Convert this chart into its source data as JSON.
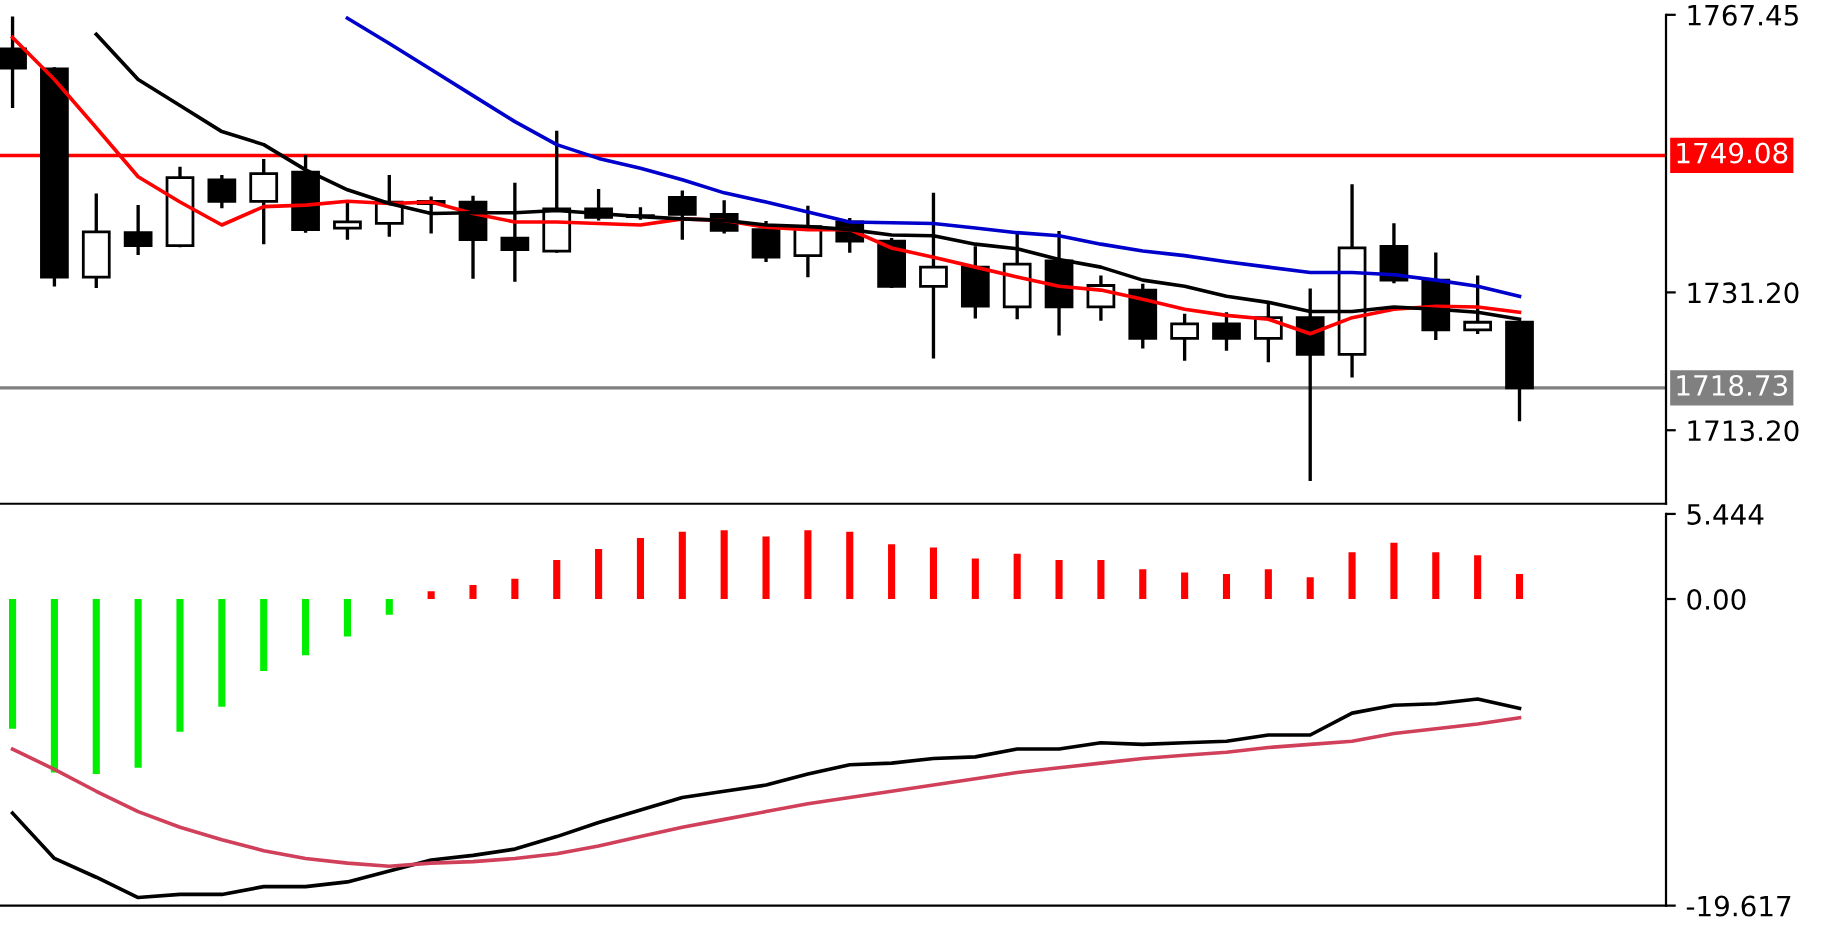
{
  "chart_data": [
    {
      "type": "candlestick",
      "categories": [
        null,
        null,
        null,
        null,
        null,
        null,
        null,
        null,
        null,
        null,
        null,
        null,
        null,
        null,
        null,
        null,
        null,
        null,
        null,
        null,
        null,
        null,
        null,
        null,
        null,
        null,
        null,
        null,
        null,
        null,
        null,
        null,
        null,
        null,
        null,
        null,
        null
      ],
      "ohlc": [
        [
          1763,
          1767,
          1755.5,
          1760.5
        ],
        [
          1760.4,
          1760.4,
          1732.2,
          1733.2
        ],
        [
          1733.2,
          1743.9,
          1732,
          1739.1
        ],
        [
          1739,
          1742.4,
          1736.3,
          1737.3
        ],
        [
          1737.3,
          1747.4,
          1737.3,
          1746.2
        ],
        [
          1745.9,
          1746.3,
          1742.4,
          1743.1
        ],
        [
          1743.1,
          1748.4,
          1737.7,
          1746.7
        ],
        [
          1746.9,
          1748.9,
          1739.2,
          1739.4
        ],
        [
          1739.6,
          1742.7,
          1738.3,
          1740.4
        ],
        [
          1740.2,
          1746.3,
          1738.7,
          1743
        ],
        [
          1743.1,
          1743.5,
          1739.1,
          1742.8
        ],
        [
          1743,
          1743.6,
          1733.2,
          1738.1
        ],
        [
          1738.3,
          1745.3,
          1732.8,
          1736.8
        ],
        [
          1736.6,
          1752.1,
          1736.6,
          1742.1
        ],
        [
          1742.1,
          1744.5,
          1740.8,
          1741
        ],
        [
          1741.2,
          1742.1,
          1740.9,
          1741.1
        ],
        [
          1743.6,
          1744.3,
          1738.3,
          1741.4
        ],
        [
          1741.4,
          1743,
          1739.1,
          1739.3
        ],
        [
          1739.4,
          1740.3,
          1735.4,
          1735.8
        ],
        [
          1736,
          1742.3,
          1733.4,
          1739.8
        ],
        [
          1740.4,
          1740.7,
          1736.6,
          1737.9
        ],
        [
          1737.9,
          1738.1,
          1732,
          1732
        ],
        [
          1732,
          1744,
          1722.8,
          1734.5
        ],
        [
          1734.5,
          1737,
          1728,
          1729.4
        ],
        [
          1729.3,
          1738.7,
          1727.9,
          1734.9
        ],
        [
          1735.3,
          1739,
          1725.8,
          1729.3
        ],
        [
          1729.3,
          1733.2,
          1727.7,
          1732.1
        ],
        [
          1731.5,
          1732.1,
          1724.1,
          1725.2
        ],
        [
          1725.2,
          1728.2,
          1722.5,
          1727.1
        ],
        [
          1727.1,
          1728.4,
          1723.8,
          1725.2
        ],
        [
          1725.2,
          1729.6,
          1722.3,
          1727.9
        ],
        [
          1727.9,
          1731.5,
          1706.8,
          1723.1
        ],
        [
          1723.1,
          1745.1,
          1720.3,
          1737
        ],
        [
          1737.2,
          1740,
          1732.6,
          1732.8
        ],
        [
          1732.8,
          1736.2,
          1725.2,
          1726.3
        ],
        [
          1726.3,
          1733.2,
          1726,
          1727.3
        ],
        [
          1727.3,
          1727.3,
          1714.6,
          1718.73
        ]
      ],
      "series": [
        {
          "type": "line",
          "color": "#ff0000",
          "values": [
            1764.5,
            1759,
            1752.7,
            1746.3,
            1743,
            1740,
            1742.4,
            1742.6,
            1743.1,
            1742.8,
            1743,
            1741.5,
            1740.4,
            1740.4,
            1740.2,
            1740,
            1740.8,
            1740.6,
            1739.7,
            1739.4,
            1739.4,
            1737,
            1735.8,
            1734.5,
            1733.2,
            1732,
            1731.5,
            1730.3,
            1729,
            1728.2,
            1727.7,
            1725.8,
            1727.9,
            1729,
            1729.4,
            1729.3,
            1728.6
          ]
        },
        {
          "type": "line",
          "color": "#000000",
          "values": [
            null,
            null,
            1764.9,
            1759,
            1755.6,
            1752.2,
            1750.5,
            1747.2,
            1744.6,
            1742.8,
            1741.5,
            1741.6,
            1741.6,
            1741.9,
            1741.5,
            1741.1,
            1740.8,
            1740.6,
            1740,
            1739.8,
            1739.4,
            1738.7,
            1738.6,
            1737.5,
            1736.9,
            1735.5,
            1734.5,
            1732.8,
            1732,
            1730.7,
            1729.9,
            1728.7,
            1728.7,
            1729.3,
            1729,
            1728.6,
            1727.7
          ]
        },
        {
          "type": "line",
          "color": "#0000cc",
          "values": [
            null,
            null,
            null,
            null,
            null,
            null,
            null,
            null,
            1767,
            1763.7,
            1760.3,
            1756.9,
            1753.5,
            1750.5,
            1748.7,
            1747.4,
            1745.9,
            1744.2,
            1743,
            1741.7,
            1740.4,
            1740.3,
            1740.2,
            1739.6,
            1739,
            1738.6,
            1737.5,
            1736.6,
            1736,
            1735.2,
            1734.5,
            1733.8,
            1733.8,
            1733.5,
            1732.8,
            1732,
            1730.7
          ]
        }
      ],
      "ylim": [
        1703.6,
        1767.45
      ],
      "yticks": [
        1767.45,
        {
          "value": 1731.2,
          "label": "1731.20"
        },
        {
          "value": 1713.2,
          "label": "1713.20"
        }
      ],
      "ref_lines": [
        {
          "axis": "y",
          "value": 1749.08,
          "label": "1749.08",
          "color": "#ff0000"
        },
        {
          "axis": "y",
          "value": 1718.73,
          "label": "1718.73",
          "color": "#808080"
        }
      ],
      "grid": false,
      "legend": false,
      "tick_labels": "y"
    },
    {
      "type": "bar",
      "categories": [
        null,
        null,
        null,
        null,
        null,
        null,
        null,
        null,
        null,
        null,
        null,
        null,
        null,
        null,
        null,
        null,
        null,
        null,
        null,
        null,
        null,
        null,
        null,
        null,
        null,
        null,
        null,
        null,
        null,
        null,
        null,
        null,
        null,
        null,
        null,
        null,
        null
      ],
      "series": [
        {
          "type": "bar",
          "colors": [
            "#00ee00",
            "#00ee00",
            "#00ee00",
            "#00ee00",
            "#00ee00",
            "#00ee00",
            "#00ee00",
            "#00ee00",
            "#00ee00",
            "#00ee00",
            "#ff0000",
            "#ff0000",
            "#ff0000",
            "#ff0000",
            "#ff0000",
            "#ff0000",
            "#ff0000",
            "#ff0000",
            "#ff0000",
            "#ff0000",
            "#ff0000",
            "#ff0000",
            "#ff0000",
            "#ff0000",
            "#ff0000",
            "#ff0000",
            "#ff0000",
            "#ff0000",
            "#ff0000",
            "#ff0000",
            "#ff0000",
            "#ff0000",
            "#ff0000",
            "#ff0000",
            "#ff0000",
            "#ff0000",
            "#ff0000"
          ],
          "values": [
            -8.3,
            -11.1,
            -11.2,
            -10.8,
            -8.5,
            -6.9,
            -4.6,
            -3.6,
            -2.4,
            -1.0,
            0.5,
            0.9,
            1.3,
            2.5,
            3.2,
            3.9,
            4.3,
            4.4,
            4.0,
            4.4,
            4.3,
            3.5,
            3.3,
            2.6,
            2.9,
            2.5,
            2.5,
            1.9,
            1.7,
            1.6,
            1.9,
            1.4,
            3.0,
            3.6,
            3.0,
            2.8,
            1.6
          ]
        },
        {
          "type": "line",
          "color": "#000000",
          "values": [
            -13.7,
            -16.6,
            -17.8,
            -19.1,
            -18.9,
            -18.9,
            -18.4,
            -18.4,
            -18.1,
            -17.4,
            -16.7,
            -16.4,
            -16,
            -15.2,
            -14.3,
            -13.5,
            -12.7,
            -12.3,
            -11.9,
            -11.2,
            -10.6,
            -10.5,
            -10.2,
            -10.1,
            -9.6,
            -9.6,
            -9.2,
            -9.3,
            -9.2,
            -9.1,
            -8.7,
            -8.7,
            -7.3,
            -6.8,
            -6.7,
            -6.4,
            -7
          ]
        },
        {
          "type": "line",
          "color": "#d0405a",
          "values": [
            -9.6,
            -10.9,
            -12.3,
            -13.6,
            -14.6,
            -15.4,
            -16.1,
            -16.6,
            -16.9,
            -17.1,
            -16.9,
            -16.8,
            -16.6,
            -16.3,
            -15.8,
            -15.2,
            -14.6,
            -14.1,
            -13.6,
            -13.1,
            -12.7,
            -12.3,
            -11.9,
            -11.5,
            -11.1,
            -10.8,
            -10.5,
            -10.2,
            -10.0,
            -9.8,
            -9.5,
            -9.3,
            -9.1,
            -8.6,
            -8.3,
            -8,
            -7.6
          ]
        }
      ],
      "ylim": [
        -19.617,
        5.444
      ],
      "yticks": [
        5.444,
        {
          "value": 0,
          "label": "0.00"
        },
        -19.617
      ],
      "grid": false,
      "legend": false,
      "tick_labels": "y"
    }
  ]
}
